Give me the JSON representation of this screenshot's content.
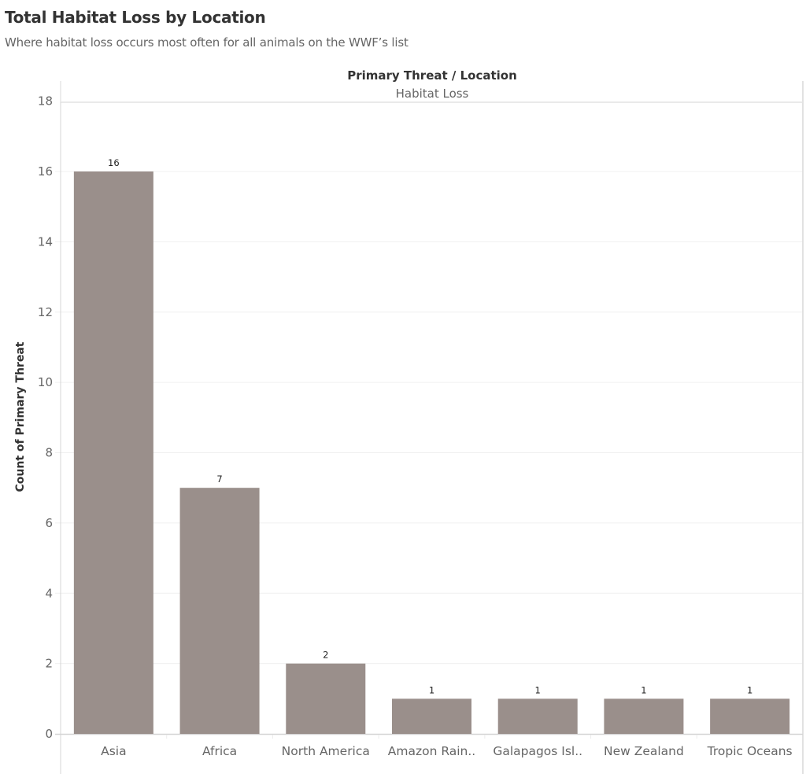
{
  "header": {
    "title": "Total Habitat Loss by Location",
    "subtitle": "Where habitat loss occurs most often for all animals on the WWF’s list"
  },
  "chart_data": {
    "type": "bar",
    "title": "Total Habitat Loss by Location",
    "subtitle": "Where habitat loss occurs most often for all animals on the WWF’s list",
    "column_header_title": "Primary Threat / Location",
    "column_header_value": "Habitat Loss",
    "categories": [
      "Asia",
      "Africa",
      "North America",
      "Amazon Rain..",
      "Galapagos Isl..",
      "New Zealand",
      "Tropic Oceans"
    ],
    "values": [
      16,
      7,
      2,
      1,
      1,
      1,
      1
    ],
    "data_labels": [
      "16",
      "7",
      "2",
      "1",
      "1",
      "1",
      "1"
    ],
    "xlabel": "",
    "ylabel": "Count of Primary Threat",
    "ylim": [
      0,
      18
    ],
    "yticks": [
      0,
      2,
      4,
      6,
      8,
      10,
      12,
      14,
      16,
      18
    ],
    "grid": true,
    "legend": "none",
    "bar_color": "#9a8f8b"
  }
}
